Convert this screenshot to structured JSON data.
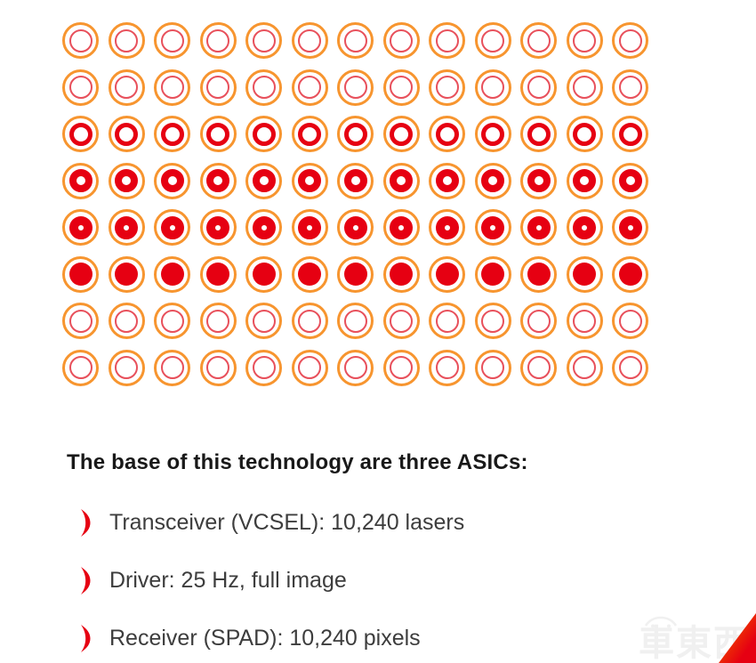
{
  "heading": "The base of this technology are three ASICs:",
  "bullets": [
    {
      "label": "Transceiver (VCSEL): 10,240 lasers"
    },
    {
      "label": "Driver: 25 Hz, full image"
    },
    {
      "label": "Receiver (SPAD): 10,240 pixels"
    }
  ],
  "grid": {
    "columns": 13,
    "rows": [
      {
        "style": "ring-thin"
      },
      {
        "style": "ring-thin"
      },
      {
        "style": "ring-medium"
      },
      {
        "style": "ring-thick"
      },
      {
        "style": "ring-heavy"
      },
      {
        "style": "solid"
      },
      {
        "style": "ring-thin"
      },
      {
        "style": "ring-thin"
      }
    ],
    "colors": {
      "orange": "#F7952F",
      "red_soft": "#E8505B",
      "red": "#E60012"
    }
  },
  "watermark": {
    "text": "車東西"
  },
  "colors": {
    "heading_text": "#191919",
    "body_text": "#3D3D3D",
    "bullet_marker": "#E60012",
    "watermark_gray": "#F0F0F0",
    "triangle_gradient_start": "#FF8A1E",
    "triangle_gradient_end": "#E60012"
  }
}
